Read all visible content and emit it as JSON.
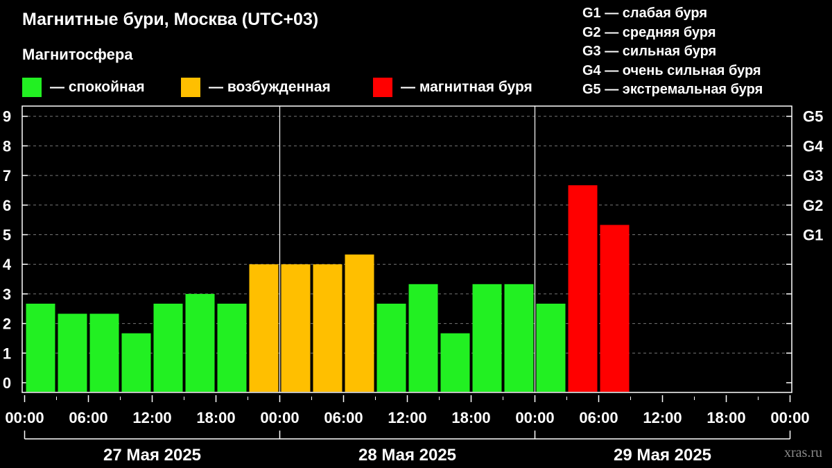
{
  "title": "Магнитные бури, Москва (UTC+03)",
  "subtitle": "Магнитосфера",
  "legend": [
    {
      "label": "— спокойная",
      "color": "#22f022"
    },
    {
      "label": "— возбужденная",
      "color": "#ffbf00"
    },
    {
      "label": "— магнитная буря",
      "color": "#ff0000"
    }
  ],
  "storm_levels": [
    "G1 — слабая буря",
    "G2 — средняя буря",
    "G3 — сильная буря",
    "G4 — очень сильная буря",
    "G5 — экстремальная буря"
  ],
  "watermark": "xras.ru",
  "chart_data": {
    "type": "bar",
    "ylim": [
      0,
      9.4
    ],
    "y_ticks": [
      "0",
      "1",
      "2",
      "3",
      "4",
      "5",
      "6",
      "7",
      "8",
      "9"
    ],
    "right_ticks": [
      {
        "y": 5,
        "label": "G1"
      },
      {
        "y": 6,
        "label": "G2"
      },
      {
        "y": 7,
        "label": "G3"
      },
      {
        "y": 8,
        "label": "G4"
      },
      {
        "y": 9,
        "label": "G5"
      }
    ],
    "x_ticks": [
      "00:00",
      "06:00",
      "12:00",
      "18:00",
      "00:00",
      "06:00",
      "12:00",
      "18:00",
      "00:00",
      "06:00",
      "12:00",
      "18:00",
      "00:00"
    ],
    "dates": [
      "27 Мая 2025",
      "28 Мая 2025",
      "29 Мая 2025"
    ],
    "grid": "dashed horizontal",
    "slots_total": 24,
    "bars": [
      {
        "start": "27 Мая 2025 00:00",
        "value": 2.67,
        "state": "quiet"
      },
      {
        "start": "27 Мая 2025 03:00",
        "value": 2.33,
        "state": "quiet"
      },
      {
        "start": "27 Мая 2025 06:00",
        "value": 2.33,
        "state": "quiet"
      },
      {
        "start": "27 Мая 2025 09:00",
        "value": 1.67,
        "state": "quiet"
      },
      {
        "start": "27 Мая 2025 12:00",
        "value": 2.67,
        "state": "quiet"
      },
      {
        "start": "27 Мая 2025 15:00",
        "value": 3.0,
        "state": "quiet"
      },
      {
        "start": "27 Мая 2025 18:00",
        "value": 2.67,
        "state": "quiet"
      },
      {
        "start": "27 Мая 2025 21:00",
        "value": 4.0,
        "state": "active"
      },
      {
        "start": "28 Мая 2025 00:00",
        "value": 4.0,
        "state": "active"
      },
      {
        "start": "28 Мая 2025 03:00",
        "value": 4.0,
        "state": "active"
      },
      {
        "start": "28 Мая 2025 06:00",
        "value": 4.33,
        "state": "active"
      },
      {
        "start": "28 Мая 2025 09:00",
        "value": 2.67,
        "state": "quiet"
      },
      {
        "start": "28 Мая 2025 12:00",
        "value": 3.33,
        "state": "quiet"
      },
      {
        "start": "28 Мая 2025 15:00",
        "value": 1.67,
        "state": "quiet"
      },
      {
        "start": "28 Мая 2025 18:00",
        "value": 3.33,
        "state": "quiet"
      },
      {
        "start": "28 Мая 2025 21:00",
        "value": 3.33,
        "state": "quiet"
      },
      {
        "start": "29 Мая 2025 00:00",
        "value": 2.67,
        "state": "quiet"
      },
      {
        "start": "29 Мая 2025 03:00",
        "value": 6.67,
        "state": "storm"
      },
      {
        "start": "29 Мая 2025 06:00",
        "value": 5.33,
        "state": "storm"
      }
    ],
    "colors": {
      "quiet": "#22f022",
      "active": "#ffbf00",
      "storm": "#ff0000"
    }
  }
}
